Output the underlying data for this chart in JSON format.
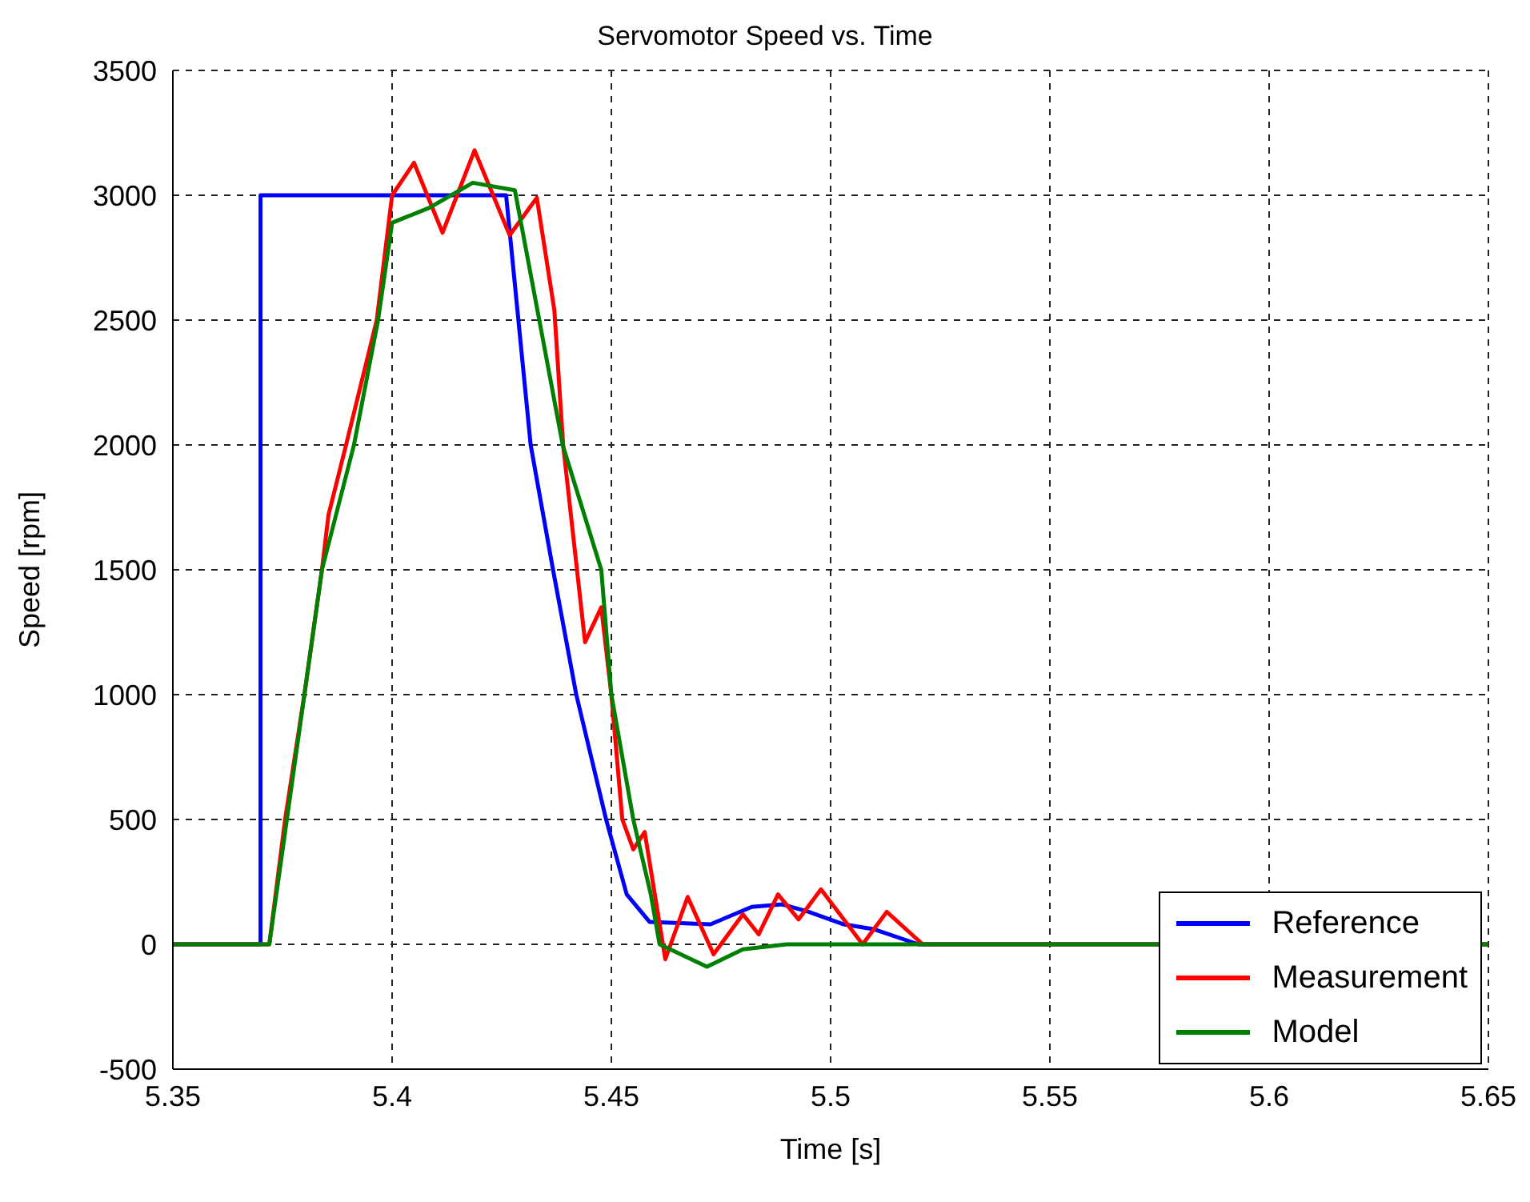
{
  "chart_data": {
    "type": "line",
    "title": "Servomotor Speed vs. Time",
    "xlabel": "Time [s]",
    "ylabel": "Speed [rpm]",
    "xlim": [
      5.35,
      5.65
    ],
    "xticks": [
      5.35,
      5.4,
      5.45,
      5.5,
      5.55,
      5.6,
      5.65
    ],
    "ylim": [
      -500,
      3500
    ],
    "yticks": [
      -500,
      0,
      500,
      1000,
      1500,
      2000,
      2500,
      3000,
      3500
    ],
    "grid": true,
    "legend": "bottom right",
    "marker": "none",
    "line_style": "solid",
    "series": [
      {
        "name": "Reference",
        "color": "#0000ff",
        "x": [
          5.35,
          5.37,
          5.37,
          5.426,
          5.4316,
          5.4367,
          5.442,
          5.4488,
          5.4535,
          5.4587,
          5.4726,
          5.482,
          5.489,
          5.495,
          5.503,
          5.51,
          5.52,
          5.65
        ],
        "values": [
          0,
          0,
          3000,
          3000,
          2000,
          1500,
          1000,
          500,
          200,
          90,
          80,
          150,
          160,
          130,
          80,
          60,
          0,
          0
        ]
      },
      {
        "name": "Measurement",
        "color": "#ff0000",
        "x": [
          5.35,
          5.372,
          5.3756,
          5.38,
          5.384,
          5.3855,
          5.3895,
          5.3965,
          5.4,
          5.405,
          5.4115,
          5.4188,
          5.4268,
          5.433,
          5.437,
          5.439,
          5.444,
          5.4477,
          5.45,
          5.4525,
          5.455,
          5.4576,
          5.4623,
          5.4674,
          5.4733,
          5.48,
          5.4836,
          5.488,
          5.4927,
          5.4978,
          5.5073,
          5.5128,
          5.521,
          5.65
        ],
        "values": [
          0,
          0,
          500,
          1000,
          1500,
          1720,
          2000,
          2500,
          3000,
          3130,
          2850,
          3180,
          2840,
          2990,
          2540,
          2000,
          1210,
          1350,
          1000,
          500,
          380,
          450,
          -60,
          190,
          -40,
          120,
          40,
          200,
          100,
          220,
          0,
          130,
          0,
          0
        ]
      },
      {
        "name": "Model",
        "color": "#008000",
        "x": [
          5.35,
          5.372,
          5.3756,
          5.38,
          5.384,
          5.3913,
          5.3968,
          5.4,
          5.4085,
          5.4184,
          5.428,
          5.4341,
          5.4389,
          5.4477,
          5.45,
          5.455,
          5.459,
          5.461,
          5.4718,
          5.48,
          5.49,
          5.65
        ],
        "values": [
          0,
          0,
          450,
          1000,
          1500,
          2000,
          2500,
          2890,
          2950,
          3050,
          3020,
          2450,
          2000,
          1500,
          1000,
          500,
          200,
          0,
          -90,
          -20,
          0,
          0
        ]
      }
    ]
  }
}
